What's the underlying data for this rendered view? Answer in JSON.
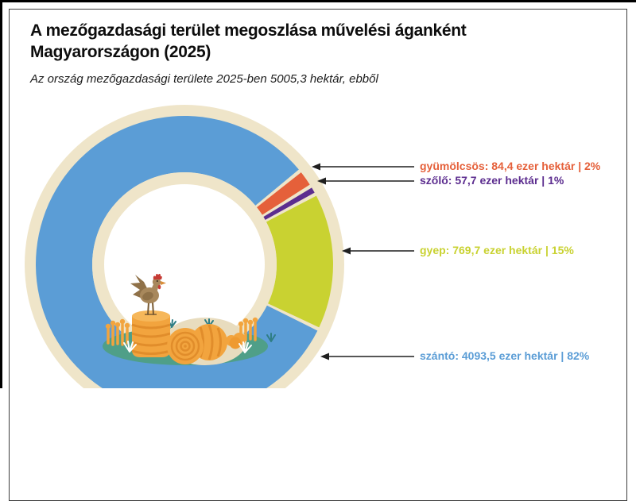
{
  "header": {
    "title_line1": "A mezőgazdasági terület megoszlása művelési áganként",
    "title_line2": "Magyarországon (2025)",
    "subtitle": "Az ország mezőgazdasági területe 2025-ben 5005,3 hektár, ebből"
  },
  "chart_data": {
    "type": "pie",
    "style": "donut",
    "title": "A mezőgazdasági terület megoszlása művelési áganként Magyarországon (2025)",
    "subtitle": "Az ország mezőgazdasági területe 2025-ben 5005,3 hektár, ebből",
    "unit": "ezer hektár",
    "total_hektar": "5005,3",
    "start_angle_deg": 51,
    "legend_position": "right-callouts",
    "segments": [
      {
        "name": "gyümölcsös",
        "value": 84.4,
        "percent": 2,
        "color": "#e5603a",
        "label": "gyümölcsös: 84,4 ezer hektár | 2%"
      },
      {
        "name": "szőlő",
        "value": 57.7,
        "percent": 1,
        "color": "#5c2d8f",
        "label": "szőlő: 57,7 ezer hektár | 1%"
      },
      {
        "name": "gyep",
        "value": 769.7,
        "percent": 15,
        "color": "#c9d231",
        "label": "gyep: 769,7 ezer hektár | 15%"
      },
      {
        "name": "szántó",
        "value": 4093.5,
        "percent": 82,
        "color": "#5b9dd6",
        "label": "szántó: 4093,5 ezer hektár | 82%"
      }
    ],
    "colors": {
      "ring": "#efe5c9",
      "hole": "#ffffff",
      "arrow": "#1f1f1f"
    }
  },
  "illustration": {
    "description": "rooster standing on a stacked hay bale, hay rolls, wheat sheaves, pumpkins and grass tufts inside the donut hole",
    "colors": {
      "hay": "#f2a43e",
      "hay_stripe": "#e18d2b",
      "hay_light": "#f6b75a",
      "pumpkin_dark": "#ee9a31",
      "ground": "#4f9f88",
      "mound": "#e8dcbe",
      "rooster_body": "#a8885c",
      "rooster_dark": "#8f7148",
      "rooster_leg": "#7a5b33",
      "comb": "#c63b35",
      "beak": "#d98e3a",
      "white_grass": "#ffffff",
      "teal_grass": "#2f7e85"
    }
  }
}
